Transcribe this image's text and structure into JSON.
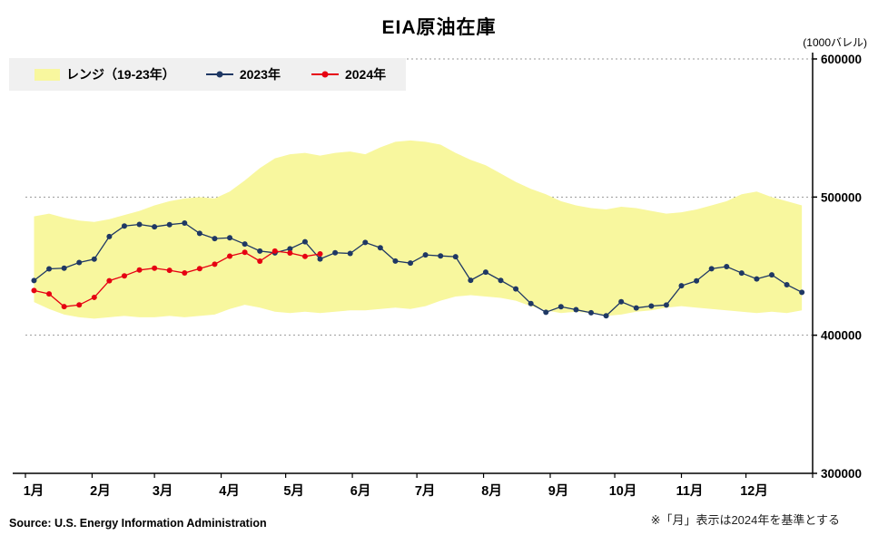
{
  "title": "EIA原油在庫",
  "unit_label": "(1000バレル)",
  "source": "Source: U.S. Energy Information Administration",
  "note": "※「月」表示は2024年を基準とする",
  "legend": [
    {
      "label": "レンジ（19-23年）",
      "type": "band",
      "color": "#f8f79e"
    },
    {
      "label": "2023年",
      "type": "line",
      "color": "#1f3864"
    },
    {
      "label": "2024年",
      "type": "line",
      "color": "#e60012"
    }
  ],
  "chart_data": {
    "type": "line",
    "title": "EIA原油在庫",
    "ylabel": "(1000バレル)",
    "ylim": [
      300000,
      600000
    ],
    "yticks": [
      300000,
      400000,
      500000,
      600000
    ],
    "grid": "horizontal-dotted",
    "legend_position": "top-left",
    "x_months": [
      "1月",
      "2月",
      "3月",
      "4月",
      "5月",
      "6月",
      "7月",
      "8月",
      "9月",
      "10月",
      "11月",
      "12月"
    ],
    "weeks": 52,
    "band": {
      "name": "レンジ（19-23年）",
      "color": "#f8f79e",
      "high": [
        486000,
        488000,
        485000,
        483000,
        482000,
        484000,
        487000,
        490000,
        494000,
        497000,
        499000,
        500000,
        499000,
        504000,
        512000,
        521000,
        528000,
        531000,
        532000,
        530000,
        532000,
        533000,
        531000,
        536000,
        540000,
        541000,
        540000,
        538000,
        532000,
        527000,
        523000,
        517000,
        511000,
        506000,
        502000,
        497000,
        494000,
        492000,
        491000,
        493000,
        492000,
        490000,
        488000,
        489000,
        491000,
        494000,
        497000,
        502000,
        504000,
        500000,
        497000,
        494000
      ],
      "low": [
        424000,
        419000,
        415000,
        413000,
        412000,
        413000,
        414000,
        413000,
        413000,
        414000,
        413000,
        414000,
        415000,
        419000,
        422000,
        420000,
        417000,
        416000,
        417000,
        416000,
        417000,
        418000,
        418000,
        419000,
        420000,
        419000,
        421000,
        425000,
        428000,
        429000,
        428000,
        427000,
        425000,
        421000,
        418000,
        416000,
        417000,
        416000,
        414000,
        415000,
        417000,
        418000,
        420000,
        421000,
        420000,
        419000,
        418000,
        417000,
        416000,
        417000,
        416000,
        418000
      ]
    },
    "series": [
      {
        "name": "2023年",
        "color": "#1f3864",
        "values": [
          439604,
          448006,
          448521,
          452655,
          455064,
          471395,
          479041,
          480206,
          478508,
          480063,
          481177,
          473691,
          469963,
          470517,
          465963,
          460913,
          459633,
          462584,
          467620,
          455170,
          459688,
          459194,
          467116,
          463293,
          453694,
          452195,
          458132,
          457423,
          456827,
          439769,
          445624,
          439662,
          433529,
          422944,
          416640,
          420597,
          418459,
          416290,
          414058,
          424240,
          419750,
          421123,
          421887,
          435796,
          439353,
          448106,
          449661,
          445031,
          440755,
          443683,
          436551,
          431069
        ]
      },
      {
        "name": "2024年",
        "color": "#e60012",
        "values": [
          432392,
          429918,
          420675,
          421918,
          427393,
          439450,
          442981,
          447176,
          448517,
          446981,
          445042,
          448208,
          451419,
          457258,
          459994,
          453623,
          460890,
          459533,
          457017,
          458844
        ]
      }
    ]
  }
}
